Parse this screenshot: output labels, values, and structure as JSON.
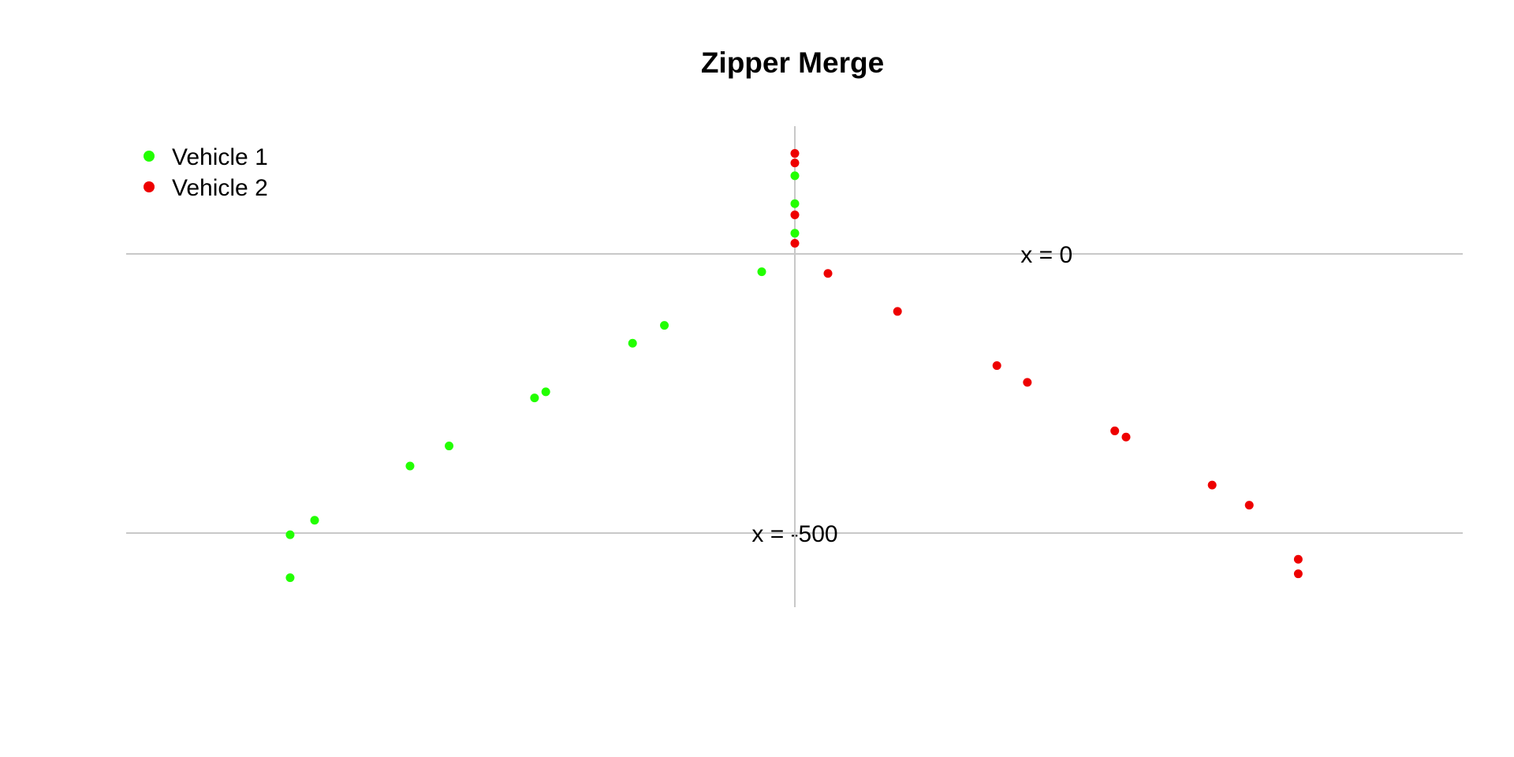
{
  "chart_data": {
    "type": "scatter",
    "title": "Zipper Merge",
    "xlabel": "",
    "ylabel": "",
    "xlim": [
      -960,
      960
    ],
    "ylim": [
      -630,
      230
    ],
    "axes_visible": false,
    "grid": false,
    "reference_lines": [
      {
        "orientation": "horizontal",
        "y": 0,
        "label": "x = 0",
        "label_x": 380,
        "color": "#c8c8c8"
      },
      {
        "orientation": "horizontal",
        "y": -500,
        "label": "x = -500",
        "label_x": 0,
        "color": "#c8c8c8"
      },
      {
        "orientation": "vertical",
        "x": 0,
        "color": "#c8c8c8"
      }
    ],
    "legend": {
      "position": "top-left"
    },
    "series": [
      {
        "name": "Vehicle 1",
        "color": "#22ff00",
        "points": [
          {
            "x": 0,
            "y": 140
          },
          {
            "x": 0,
            "y": 90
          },
          {
            "x": 0,
            "y": 37
          },
          {
            "x": -50,
            "y": -32
          },
          {
            "x": -197,
            "y": -128
          },
          {
            "x": -245,
            "y": -160
          },
          {
            "x": -376,
            "y": -247
          },
          {
            "x": -393,
            "y": -258
          },
          {
            "x": -522,
            "y": -344
          },
          {
            "x": -581,
            "y": -380
          },
          {
            "x": -725,
            "y": -477
          },
          {
            "x": -762,
            "y": -503
          },
          {
            "x": -762,
            "y": -580
          }
        ]
      },
      {
        "name": "Vehicle 2",
        "color": "#ee0000",
        "points": [
          {
            "x": 0,
            "y": 180
          },
          {
            "x": 0,
            "y": 163
          },
          {
            "x": 0,
            "y": 70
          },
          {
            "x": 0,
            "y": 19
          },
          {
            "x": 50,
            "y": -35
          },
          {
            "x": 155,
            "y": -103
          },
          {
            "x": 305,
            "y": -200
          },
          {
            "x": 351,
            "y": -230
          },
          {
            "x": 483,
            "y": -317
          },
          {
            "x": 500,
            "y": -328
          },
          {
            "x": 630,
            "y": -414
          },
          {
            "x": 686,
            "y": -450
          },
          {
            "x": 760,
            "y": -547
          },
          {
            "x": 760,
            "y": -573
          }
        ]
      }
    ]
  }
}
